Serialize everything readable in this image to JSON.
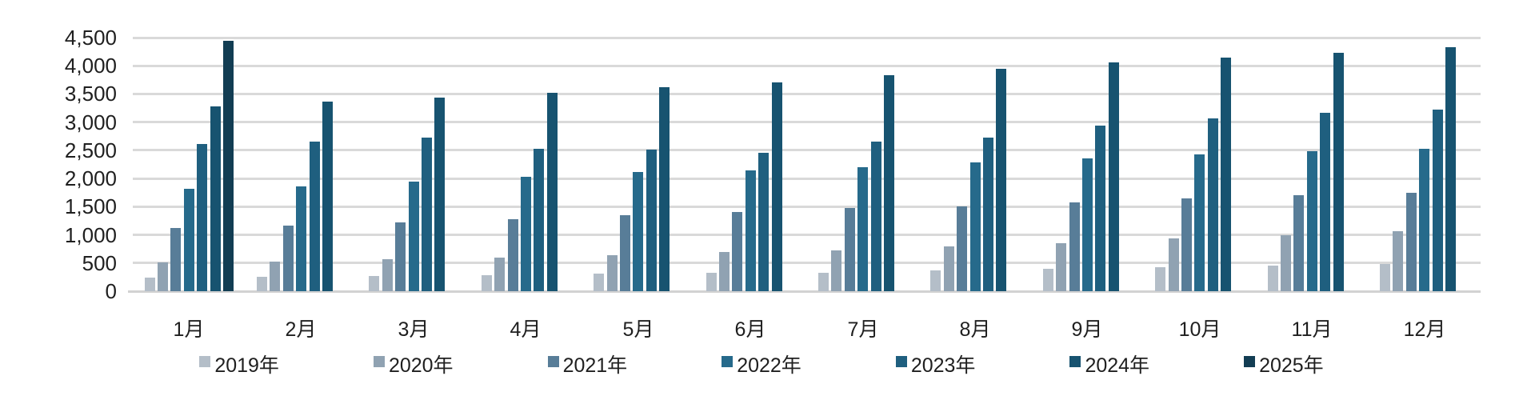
{
  "chart_data": {
    "type": "bar",
    "title": "",
    "xlabel": "",
    "ylabel": "",
    "categories": [
      "1月",
      "2月",
      "3月",
      "4月",
      "5月",
      "6月",
      "7月",
      "8月",
      "9月",
      "10月",
      "11月",
      "12月"
    ],
    "series": [
      {
        "name": "2019年",
        "color": "#b4bec8",
        "values": [
          240,
          250,
          270,
          290,
          310,
          320,
          330,
          370,
          400,
          430,
          460,
          480
        ]
      },
      {
        "name": "2020年",
        "color": "#90a2b2",
        "values": [
          510,
          530,
          570,
          590,
          640,
          700,
          730,
          790,
          850,
          940,
          1000,
          1060
        ]
      },
      {
        "name": "2021年",
        "color": "#587d98",
        "values": [
          1120,
          1170,
          1220,
          1280,
          1350,
          1410,
          1470,
          1510,
          1580,
          1640,
          1710,
          1750
        ]
      },
      {
        "name": "2022年",
        "color": "#266a8b",
        "values": [
          1820,
          1860,
          1940,
          2030,
          2110,
          2150,
          2200,
          2290,
          2350,
          2430,
          2490,
          2530
        ]
      },
      {
        "name": "2023年",
        "color": "#1f5f7f",
        "values": [
          2610,
          2660,
          2730,
          2530,
          2510,
          2450,
          2660,
          2730,
          2940,
          3060,
          3160,
          3220
        ]
      },
      {
        "name": "2024年",
        "color": "#175370",
        "values": [
          3280,
          3360,
          3430,
          3520,
          3620,
          3700,
          3830,
          3950,
          4060,
          4150,
          4230,
          4330
        ]
      },
      {
        "name": "2025年",
        "color": "#123d53",
        "values": [
          4440,
          null,
          null,
          null,
          null,
          null,
          null,
          null,
          null,
          null,
          null,
          null
        ]
      }
    ],
    "ylim": [
      0,
      4500
    ],
    "ytick_step": 500,
    "y_tick_labels": [
      "0",
      "500",
      "1,000",
      "1,500",
      "2,000",
      "2,500",
      "3,000",
      "3,500",
      "4,000",
      "4,500"
    ],
    "grid": "horizontal",
    "gridline_color": "#d9d9d9",
    "legend_position": "bottom"
  }
}
